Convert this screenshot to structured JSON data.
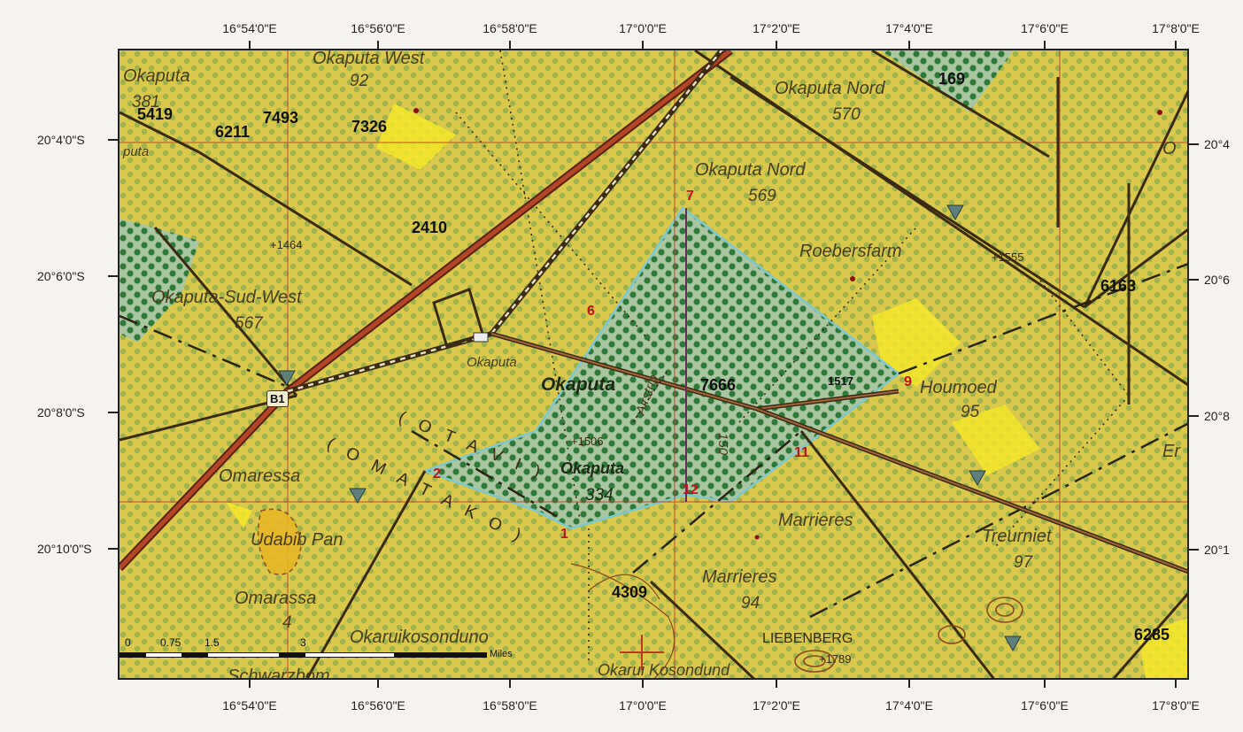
{
  "axes": {
    "top_labels": [
      "16°54'0\"E",
      "16°56'0\"E",
      "16°58'0\"E",
      "17°0'0\"E",
      "17°2'0\"E",
      "17°4'0\"E",
      "17°6'0\"E",
      "17°8'0\"E"
    ],
    "bottom_labels": [
      "16°54'0\"E",
      "16°56'0\"E",
      "16°58'0\"E",
      "17°0'0\"E",
      "17°2'0\"E",
      "17°4'0\"E",
      "17°6'0\"E",
      "17°8'0\"E"
    ],
    "left_labels": [
      "20°4'0\"S",
      "20°6'0\"S",
      "20°8'0\"S",
      "20°10'0\"S"
    ],
    "right_labels": [
      "20°4",
      "20°6",
      "20°8",
      "20°1"
    ]
  },
  "farms": {
    "okaputa": "Okaputa",
    "okaputa_num": "381",
    "okaputa_west": "Okaputa West",
    "okaputa_west_num": "92",
    "okaputa_nord_1": "Okaputa Nord",
    "okaputa_nord_1_num": "570",
    "okaputa_nord_2": "Okaputa Nord",
    "okaputa_nord_2_num": "569",
    "okaputa_sud_west": "Okaputa-Sud-West",
    "okaputa_sud_west_num": "567",
    "roebersfarm": "Roebersfarm",
    "houmoed": "Houmoed",
    "houmoed_num": "95",
    "omaressa": "Omaressa",
    "udabib": "Udabib Pan",
    "omarassa": "Omarassa",
    "omarassa_num": "4",
    "okaruikosonduno": "Okaruikosonduno",
    "marrieres_1": "Marrieres",
    "marrieres_2": "Marrieres",
    "marrieres_num": "94",
    "treurniet": "Treurniet",
    "treurniet_num": "97",
    "liebenberg": "LIEBENBERG",
    "okarui": "Okarui Kosondund",
    "schwarzbom": "Schwarzbom",
    "okaputa_center": "Okaputa",
    "okaputa_center_num": "334",
    "okaputa_village": "Okaputa",
    "okaputa_main": "Okaputa",
    "partial_er": "Er",
    "partial_o": "O",
    "partial_puta": "puta"
  },
  "plots": {
    "p5419": "5419",
    "p6211": "6211",
    "p7493": "7493",
    "p7326": "7326",
    "p169": "169",
    "p2410": "2410",
    "p6163": "6163",
    "p7666": "7666",
    "p4309": "4309",
    "p6285": "6285"
  },
  "points": {
    "n1": "1",
    "n2": "2",
    "n6": "6",
    "n7": "7",
    "n9": "9",
    "n11": "11",
    "n12": "12"
  },
  "elevations": {
    "e1464": "+1464",
    "e1555": "+1555",
    "e1517": "1517",
    "e1506": "+1506",
    "e1789": "+1789"
  },
  "misc": {
    "airstrip": "Airstrip",
    "road_b1": "B1",
    "otavi": "( O T A V I )",
    "omatako": "( O M A T A K O )",
    "route_150": "150"
  },
  "scale_bar": {
    "labels": [
      "0",
      "0.75",
      "1.5",
      "3"
    ],
    "unit": "Miles"
  },
  "colors": {
    "land": "#d8c948",
    "bright_yellow": "#f2e52a",
    "protected": "#a9c9a2",
    "protected_outline": "#7fc8d0",
    "dots": "#4e8a3a",
    "road": "#8a3420",
    "boundary": "#3b2a14",
    "red_points": "#c0141c"
  }
}
